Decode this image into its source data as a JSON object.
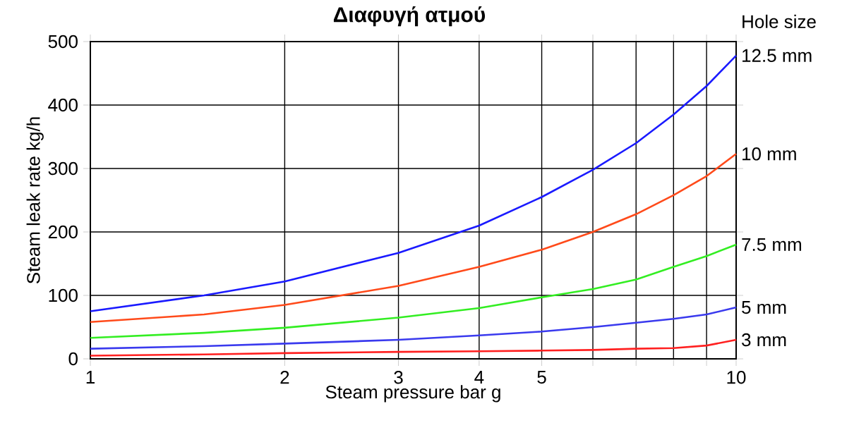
{
  "chart_data": {
    "type": "line",
    "title": "Διαφυγή ατμού",
    "xlabel": "Steam pressure bar g",
    "ylabel": "Steam leak rate kg/h",
    "legend_title": "Hole size",
    "log": "x",
    "grid": true,
    "x": [
      1,
      1.5,
      2,
      3,
      4,
      5,
      6,
      7,
      8,
      9,
      10
    ],
    "xlim": [
      1,
      10
    ],
    "xticks": [
      1,
      2,
      3,
      4,
      5,
      {
        "value": 6,
        "label": null
      },
      {
        "value": 7,
        "label": null
      },
      {
        "value": 8,
        "label": null
      },
      {
        "value": 9,
        "label": null
      },
      10
    ],
    "ylim": [
      0,
      500
    ],
    "yticks": [
      0,
      100,
      200,
      300,
      400,
      500
    ],
    "series": [
      {
        "name": "12.5 mm",
        "color": "#1a1aff",
        "values": [
          75,
          100,
          122,
          167,
          210,
          255,
          298,
          340,
          385,
          430,
          478
        ]
      },
      {
        "name": "10 mm",
        "color": "#ff4a1a",
        "values": [
          58,
          70,
          85,
          115,
          145,
          172,
          200,
          228,
          258,
          288,
          323
        ]
      },
      {
        "name": "7.5 mm",
        "color": "#33ee22",
        "values": [
          33,
          41,
          49,
          65,
          80,
          97,
          110,
          125,
          145,
          162,
          180
        ]
      },
      {
        "name": "5 mm",
        "color": "#3a3aee",
        "values": [
          16,
          20,
          24,
          30,
          37,
          43,
          50,
          57,
          63,
          70,
          81
        ]
      },
      {
        "name": "3 mm",
        "color": "#ff2020",
        "values": [
          5,
          7,
          9,
          11,
          12,
          13,
          14,
          16,
          17,
          21,
          30
        ]
      }
    ]
  }
}
